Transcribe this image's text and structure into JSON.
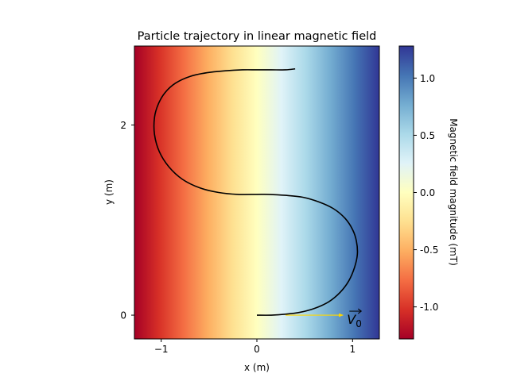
{
  "chart_data": {
    "type": "line",
    "title": "Particle trajectory in linear magnetic field",
    "xlabel": "x (m)",
    "ylabel": "y (m)",
    "xlim": [
      -1.28,
      1.28
    ],
    "ylim": [
      -0.25,
      2.83
    ],
    "x_ticks": [
      -1,
      0,
      1
    ],
    "x_tick_labels": [
      "−1",
      "0",
      "1"
    ],
    "y_ticks": [
      0,
      2
    ],
    "y_tick_labels": [
      "0",
      "2"
    ],
    "background": {
      "type": "heatmap",
      "varies_along": "x",
      "colormap": "RdYlBu",
      "value_range": [
        -1.28,
        1.28
      ]
    },
    "colorbar": {
      "label": "Magnetic field magnitude (mT)",
      "range": [
        -1.28,
        1.28
      ],
      "ticks": [
        -1.0,
        -0.5,
        0.0,
        0.5,
        1.0
      ],
      "tick_labels": [
        "-1.0",
        "-0.5",
        "0.0",
        "0.5",
        "1.0"
      ]
    },
    "series": [
      {
        "color": "#000000",
        "x": [
          0.0,
          0.15,
          0.3,
          0.45,
          0.6,
          0.75,
          0.87,
          0.96,
          1.02,
          1.05,
          1.04,
          1.0,
          0.92,
          0.8,
          0.65,
          0.48,
          0.3,
          0.12,
          0.0,
          -0.2,
          -0.4,
          -0.6,
          -0.78,
          -0.92,
          -1.02,
          -1.07,
          -1.07,
          -1.03,
          -0.96,
          -0.85,
          -0.7,
          -0.52,
          -0.33,
          -0.15,
          0.0,
          0.15,
          0.3,
          0.4
        ],
        "y": [
          0.0,
          0.0,
          0.01,
          0.03,
          0.07,
          0.14,
          0.24,
          0.36,
          0.5,
          0.64,
          0.78,
          0.9,
          1.02,
          1.12,
          1.19,
          1.24,
          1.26,
          1.27,
          1.27,
          1.27,
          1.29,
          1.34,
          1.43,
          1.56,
          1.72,
          1.9,
          2.08,
          2.22,
          2.34,
          2.44,
          2.51,
          2.55,
          2.57,
          2.58,
          2.58,
          2.58,
          2.58,
          2.59
        ]
      }
    ],
    "annotations": [
      {
        "label": "V0",
        "color": "#FFD700",
        "from": [
          0.3,
          0.0
        ],
        "to": [
          0.9,
          0.0
        ]
      }
    ]
  }
}
